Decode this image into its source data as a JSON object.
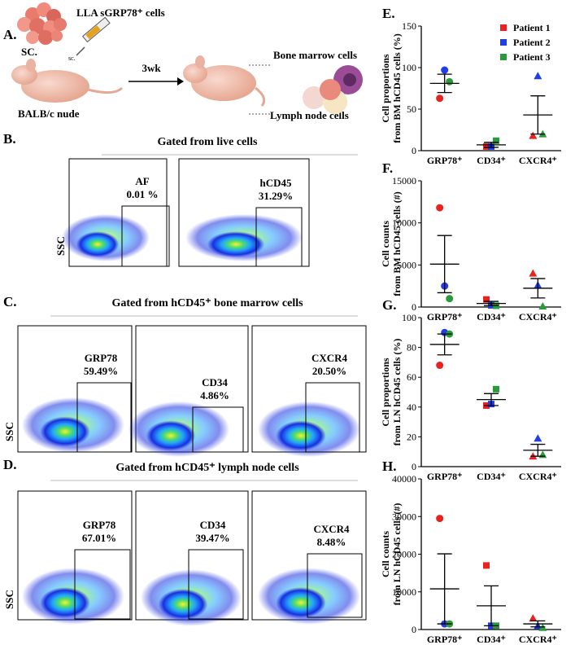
{
  "panel_a": {
    "label": "A.",
    "cells": "LLA sGRP78⁺ cells",
    "site": "SC.",
    "syringe": "sc.",
    "mouse": "BALB/c nude",
    "interval": "3wk",
    "bone_marrow": "Bone marrow cells",
    "lymph_node": "Lymph node cells"
  },
  "panel_b": {
    "label": "B.",
    "title": "Gated from live cells",
    "y_label": "SSC",
    "plots": [
      {
        "gate": "AF",
        "percent": "0.01 %"
      },
      {
        "gate": "hCD45",
        "percent": "31.29%"
      }
    ]
  },
  "panel_c": {
    "label": "C.",
    "title": "Gated from hCD45⁺ bone marrow cells",
    "y_label": "SSC",
    "plots": [
      {
        "gate": "GRP78",
        "percent": "59.49%"
      },
      {
        "gate": "CD34",
        "percent": "4.86%"
      },
      {
        "gate": "CXCR4",
        "percent": "20.50%"
      }
    ]
  },
  "panel_d": {
    "label": "D.",
    "title": "Gated from hCD45⁺ lymph node cells",
    "y_label": "SSC",
    "plots": [
      {
        "gate": "GRP78",
        "percent": "67.01%"
      },
      {
        "gate": "CD34",
        "percent": "39.47%"
      },
      {
        "gate": "CXCR4",
        "percent": "8.48%"
      }
    ]
  },
  "chart_data": [
    {
      "type": "scatter",
      "label": "E.",
      "ylabel": [
        "Cell proportions",
        "from BM hCD45 cells (%)"
      ],
      "categories": [
        "GRP78⁺",
        "CD34⁺",
        "CXCR4⁺"
      ],
      "markers": [
        "circle",
        "square",
        "triangle"
      ],
      "legend": "upper right",
      "series": [
        {
          "name": "Patient 1",
          "color": "#e8231f",
          "values": [
            63,
            5,
            18
          ]
        },
        {
          "name": "Patient 2",
          "color": "#1f3ee6",
          "values": [
            97,
            5,
            90
          ]
        },
        {
          "name": "Patient 3",
          "color": "#2a9a3a",
          "values": [
            83,
            12,
            20
          ]
        }
      ],
      "means": [
        81,
        7,
        43
      ],
      "errors": [
        11,
        3,
        23
      ],
      "ylim": [
        0,
        150
      ],
      "yticks": [
        0,
        50,
        100,
        150
      ]
    },
    {
      "type": "scatter",
      "label": "F.",
      "ylabel": [
        "Cell counts",
        "from BM hCD45 cells (#)"
      ],
      "categories": [
        "GRP78⁺",
        "CD34⁺",
        "CXCR4⁺"
      ],
      "markers": [
        "circle",
        "square",
        "triangle"
      ],
      "series": [
        {
          "color": "#e8231f",
          "values": [
            11800,
            900,
            4000
          ]
        },
        {
          "color": "#1f3ee6",
          "values": [
            2500,
            200,
            2600
          ]
        },
        {
          "color": "#2a9a3a",
          "values": [
            1000,
            150,
            100
          ]
        }
      ],
      "means": [
        5100,
        420,
        2230
      ],
      "errors": [
        3400,
        250,
        1150
      ],
      "ylim": [
        0,
        15000
      ],
      "yticks": [
        0,
        5000,
        10000,
        15000
      ]
    },
    {
      "type": "scatter",
      "label": "G.",
      "ylabel": [
        "Cell proportions",
        "from LN hCD45 cells (%)"
      ],
      "categories": [
        "GRP78⁺",
        "CD34⁺",
        "CXCR4⁺"
      ],
      "markers": [
        "circle",
        "square",
        "triangle"
      ],
      "series": [
        {
          "color": "#e8231f",
          "values": [
            68,
            41,
            7
          ]
        },
        {
          "color": "#1f3ee6",
          "values": [
            90,
            42,
            19
          ]
        },
        {
          "color": "#2a9a3a",
          "values": [
            89,
            52,
            8
          ]
        }
      ],
      "means": [
        82,
        45,
        11
      ],
      "errors": [
        7,
        4,
        4
      ],
      "ylim": [
        0,
        100
      ],
      "yticks": [
        0,
        20,
        40,
        60,
        80,
        100
      ]
    },
    {
      "type": "scatter",
      "label": "H.",
      "ylabel": [
        "Cell counts",
        "from LN hCD45 cells (#)"
      ],
      "categories": [
        "GRP78⁺",
        "CD34⁺",
        "CXCR4⁺"
      ],
      "markers": [
        "circle",
        "square",
        "triangle"
      ],
      "series": [
        {
          "color": "#e8231f",
          "values": [
            29500,
            17000,
            3000
          ]
        },
        {
          "color": "#1f3ee6",
          "values": [
            1500,
            1000,
            1000
          ]
        },
        {
          "color": "#2a9a3a",
          "values": [
            1500,
            1000,
            500
          ]
        }
      ],
      "means": [
        10800,
        6300,
        1500
      ],
      "errors": [
        9300,
        5300,
        800
      ],
      "ylim": [
        0,
        40000
      ],
      "yticks": [
        0,
        10000,
        20000,
        30000,
        40000
      ]
    }
  ]
}
